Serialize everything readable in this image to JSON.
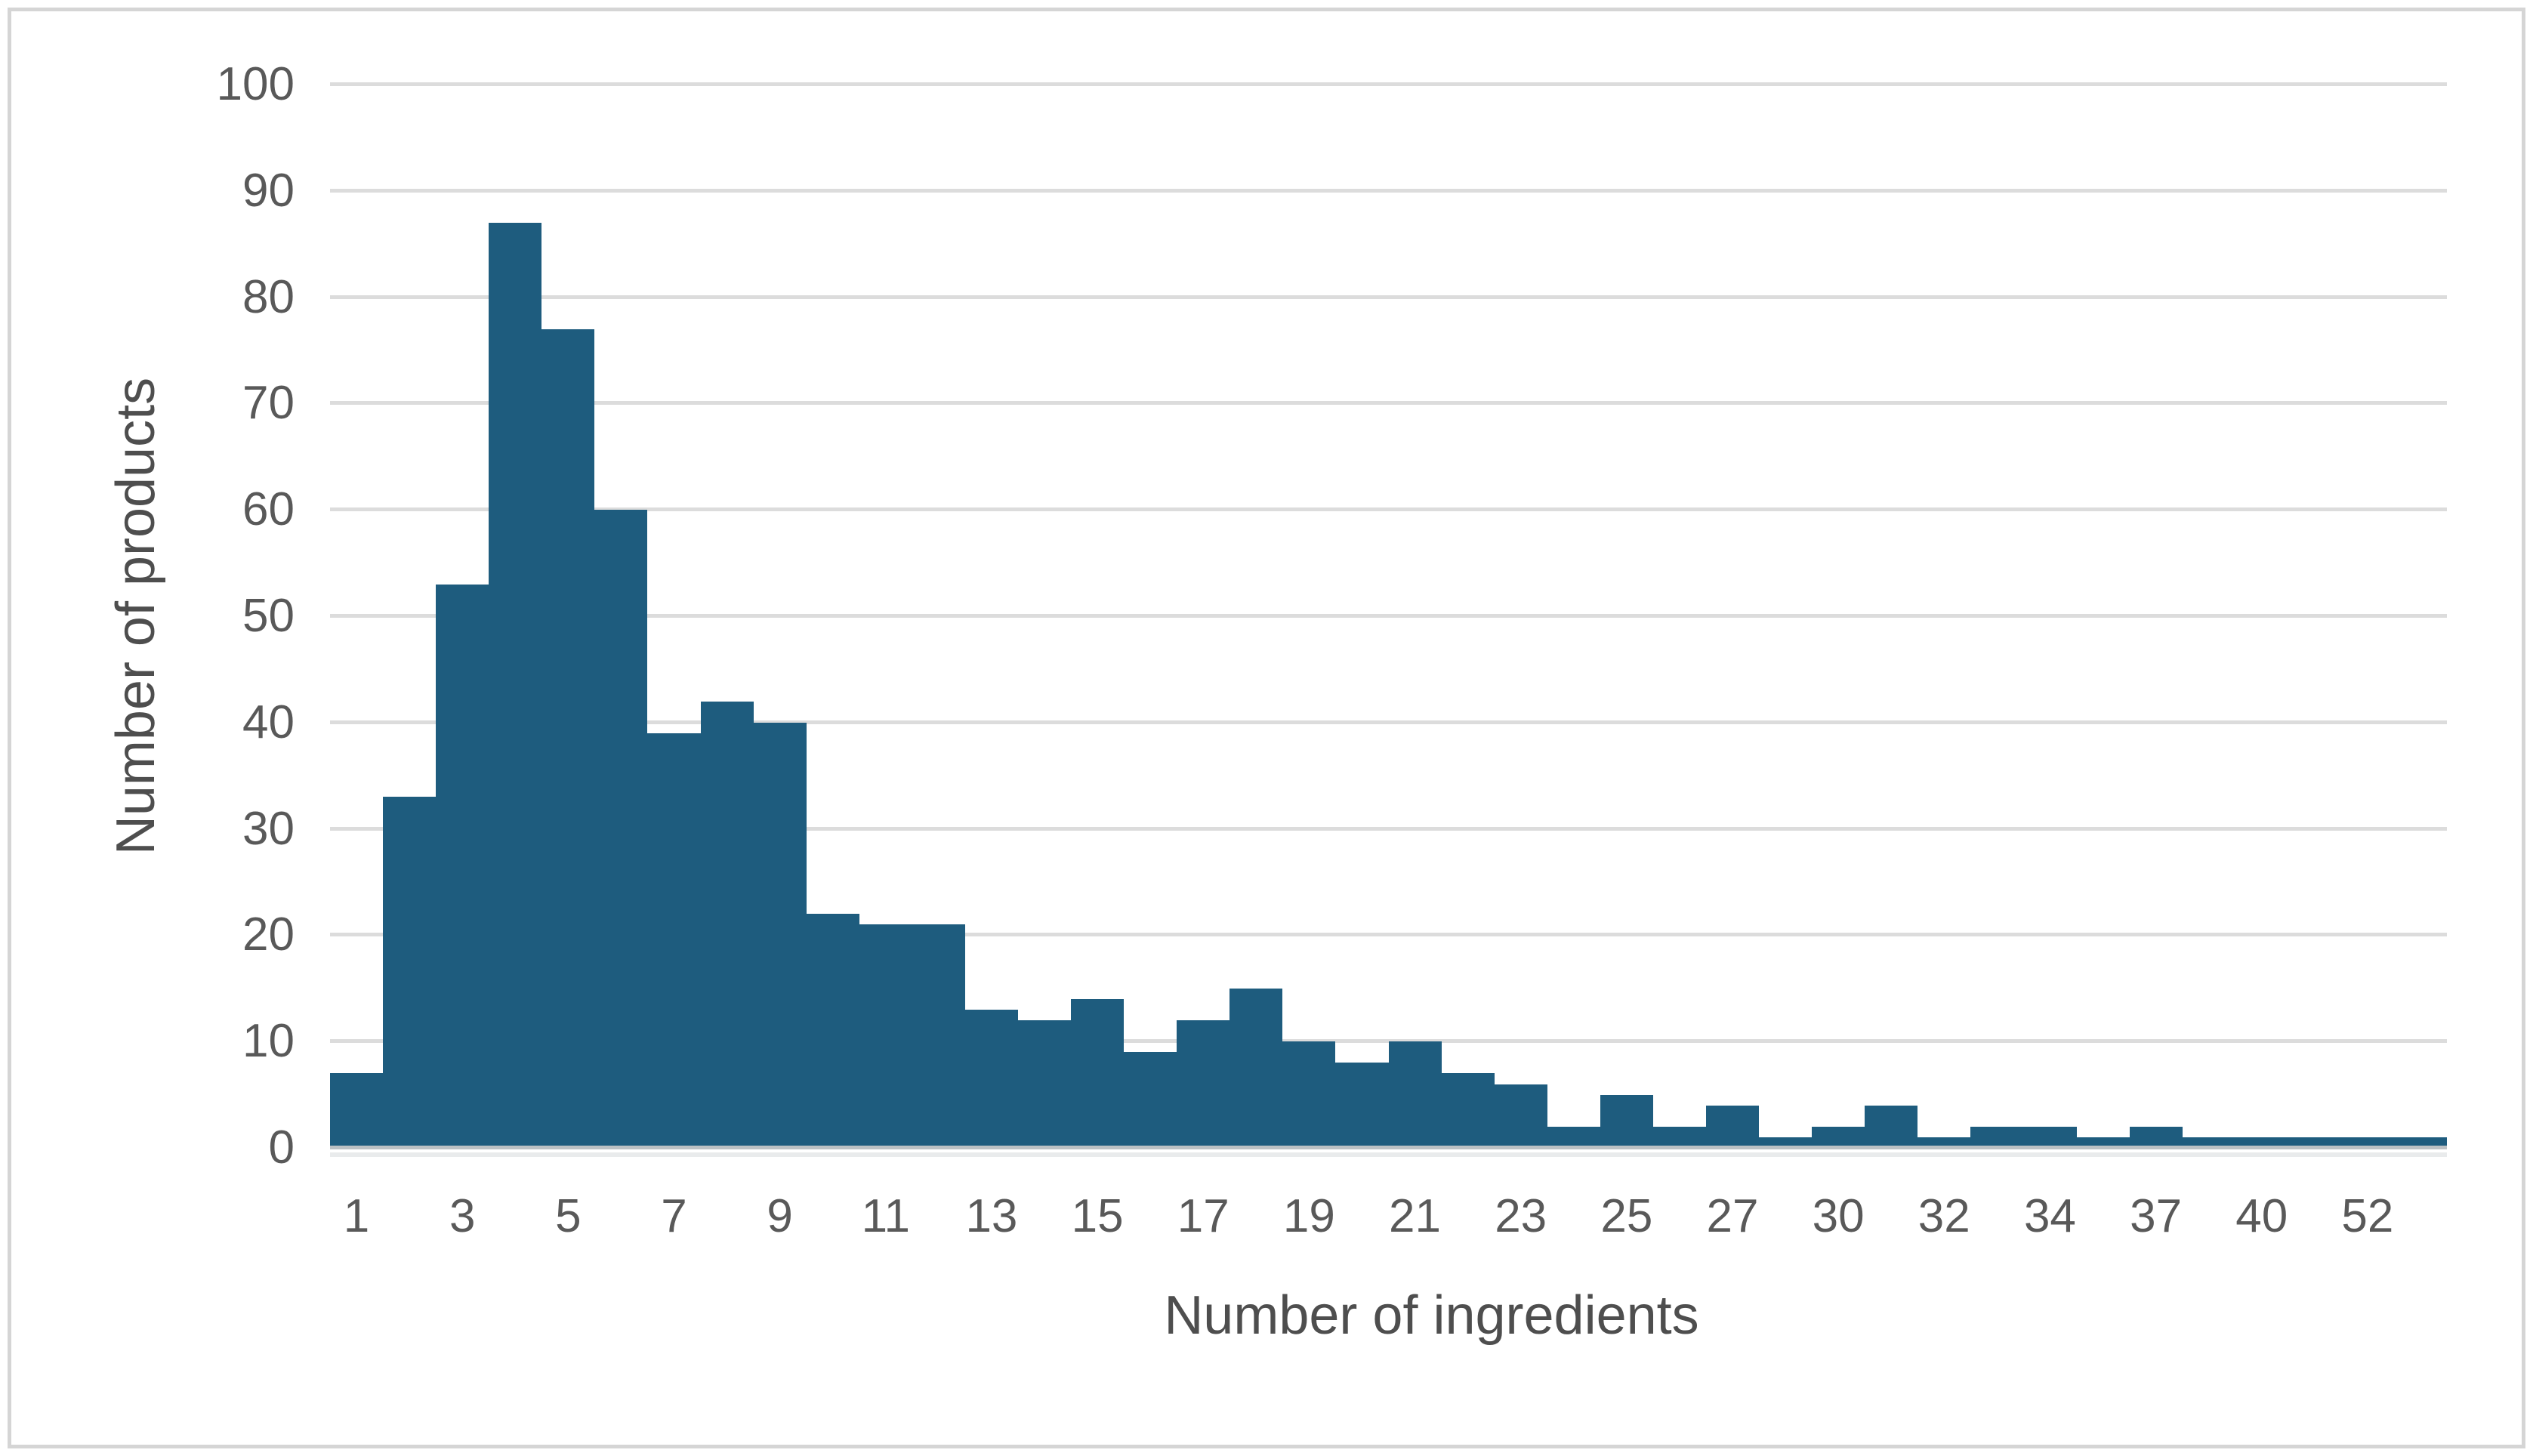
{
  "chart_data": {
    "type": "bar",
    "title": "",
    "xlabel": "Number of ingredients",
    "ylabel": "Number of products",
    "ylim": [
      0,
      100
    ],
    "y_ticks": [
      0,
      10,
      20,
      30,
      40,
      50,
      60,
      70,
      80,
      90,
      100
    ],
    "grid": "horizontal",
    "legend": "none",
    "bar_gap": 0,
    "categories": [
      "1",
      "",
      "3",
      "",
      "5",
      "",
      "7",
      "",
      "9",
      "",
      "11",
      "",
      "13",
      "",
      "15",
      "",
      "17",
      "",
      "19",
      "",
      "21",
      "",
      "23",
      "",
      "25",
      "",
      "27",
      "",
      "30",
      "",
      "32",
      "",
      "34",
      "",
      "37",
      "",
      "40",
      "",
      "52",
      ""
    ],
    "x_tick_labels_shown": [
      "1",
      "3",
      "5",
      "7",
      "9",
      "11",
      "13",
      "15",
      "17",
      "19",
      "21",
      "23",
      "25",
      "27",
      "30",
      "32",
      "34",
      "37",
      "40",
      "52"
    ],
    "values": [
      7,
      33,
      53,
      87,
      77,
      60,
      39,
      42,
      40,
      22,
      21,
      21,
      13,
      12,
      14,
      9,
      12,
      15,
      10,
      8,
      10,
      7,
      6,
      2,
      5,
      2,
      4,
      1,
      2,
      4,
      1,
      2,
      2,
      1,
      2,
      1,
      1,
      1,
      1,
      1
    ],
    "colors": {
      "bar": "#1e5c7e",
      "gridline": "#dcdcdc",
      "axis_line": "#bcc1c4",
      "tick_text": "#595959",
      "title_text": "#4e4e4e",
      "frame_border": "#d5d5d5",
      "background": "#ffffff"
    }
  },
  "axes": {
    "x_title": "Number of ingredients",
    "y_title": "Number of products"
  }
}
